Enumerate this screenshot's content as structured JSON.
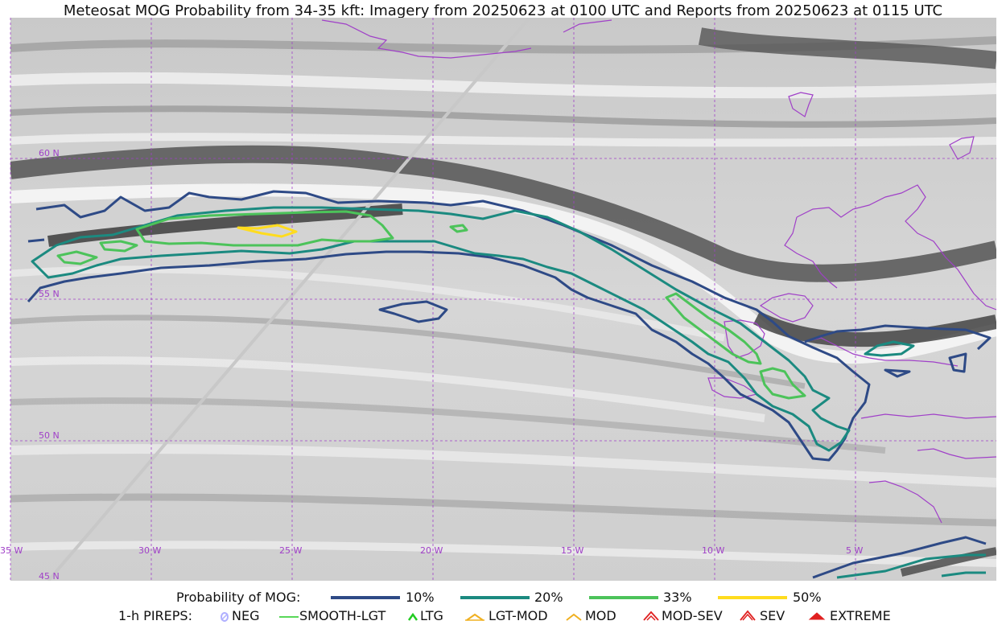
{
  "title": "Meteosat MOG Probability from 34-35 kft: Imagery from 20250623 at 0100 UTC and Reports from 20250623 at 0115 UTC",
  "colors": {
    "grid": "#a040c8",
    "coast": "#a040c8",
    "p10": "#2e4a86",
    "p20": "#1b8a80",
    "p33": "#4cc35a",
    "p50": "#ffdc1e",
    "aircraft_track": "#c8c8c8"
  },
  "map": {
    "lat_labels": [
      "60 N",
      "55 N",
      "50 N",
      "45 N"
    ],
    "lon_labels": [
      "35 W",
      "30 W",
      "25 W",
      "20 W",
      "15 W",
      "10 W",
      "5 W"
    ]
  },
  "legend": {
    "prob_title": "Probability of MOG:",
    "prob_items": [
      {
        "label": "10%",
        "color": "#2e4a86"
      },
      {
        "label": "20%",
        "color": "#1b8a80"
      },
      {
        "label": "33%",
        "color": "#4cc35a"
      },
      {
        "label": "50%",
        "color": "#ffdc1e"
      }
    ],
    "pirep_title": "1-h PIREPS:",
    "pirep_items": [
      {
        "label": "NEG",
        "icon": "neg-icon",
        "color": "#b0b0ff"
      },
      {
        "label": "SMOOTH-LGT",
        "icon": "smooth-lgt-icon",
        "color": "#22cc22"
      },
      {
        "label": "LTG",
        "icon": "ltg-icon",
        "color": "#22cc22"
      },
      {
        "label": "LGT-MOD",
        "icon": "lgt-mod-icon",
        "color": "#f0b020"
      },
      {
        "label": "MOD",
        "icon": "mod-icon",
        "color": "#f0b020"
      },
      {
        "label": "MOD-SEV",
        "icon": "mod-sev-icon",
        "color": "#e02020"
      },
      {
        "label": "SEV",
        "icon": "sev-icon",
        "color": "#e02020"
      },
      {
        "label": "EXTREME",
        "icon": "extreme-icon",
        "color": "#e02020"
      }
    ]
  }
}
